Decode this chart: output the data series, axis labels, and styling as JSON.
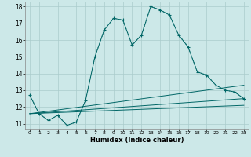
{
  "background_color": "#cce8e8",
  "grid_color": "#aacccc",
  "line_color": "#006666",
  "xlabel": "Humidex (Indice chaleur)",
  "ylim": [
    10.7,
    18.3
  ],
  "xlim": [
    -0.5,
    23.5
  ],
  "yticks": [
    11,
    12,
    13,
    14,
    15,
    16,
    17,
    18
  ],
  "xticks": [
    0,
    1,
    2,
    3,
    4,
    5,
    6,
    7,
    8,
    9,
    10,
    11,
    12,
    13,
    14,
    15,
    16,
    17,
    18,
    19,
    20,
    21,
    22,
    23
  ],
  "line1_x": [
    0,
    1,
    2,
    3,
    4,
    5,
    6,
    7,
    8,
    9,
    10,
    11,
    12,
    13,
    14,
    15,
    16,
    17,
    18,
    19,
    20,
    21,
    22,
    23
  ],
  "line1_y": [
    12.7,
    11.6,
    11.2,
    11.5,
    10.9,
    11.1,
    12.4,
    15.0,
    16.6,
    17.3,
    17.2,
    15.7,
    16.3,
    18.0,
    17.8,
    17.5,
    16.3,
    15.6,
    14.1,
    13.9,
    13.3,
    13.0,
    12.9,
    12.5
  ],
  "dotted_x": [
    0,
    1,
    2,
    3,
    4,
    5,
    6,
    7,
    8,
    9,
    10,
    11,
    12,
    13,
    14,
    15,
    16,
    17,
    18,
    19,
    20,
    21,
    22,
    23
  ],
  "dotted_y": [
    12.7,
    11.6,
    11.2,
    11.5,
    10.9,
    11.1,
    12.4,
    15.0,
    16.6,
    17.3,
    17.2,
    15.7,
    16.3,
    18.0,
    17.8,
    17.5,
    16.3,
    15.6,
    14.1,
    13.9,
    13.3,
    13.0,
    12.9,
    12.5
  ],
  "line2_x": [
    0,
    23
  ],
  "line2_y": [
    11.6,
    13.3
  ],
  "line3_x": [
    0,
    23
  ],
  "line3_y": [
    11.6,
    12.5
  ],
  "line4_x": [
    0,
    23
  ],
  "line4_y": [
    11.6,
    12.1
  ]
}
